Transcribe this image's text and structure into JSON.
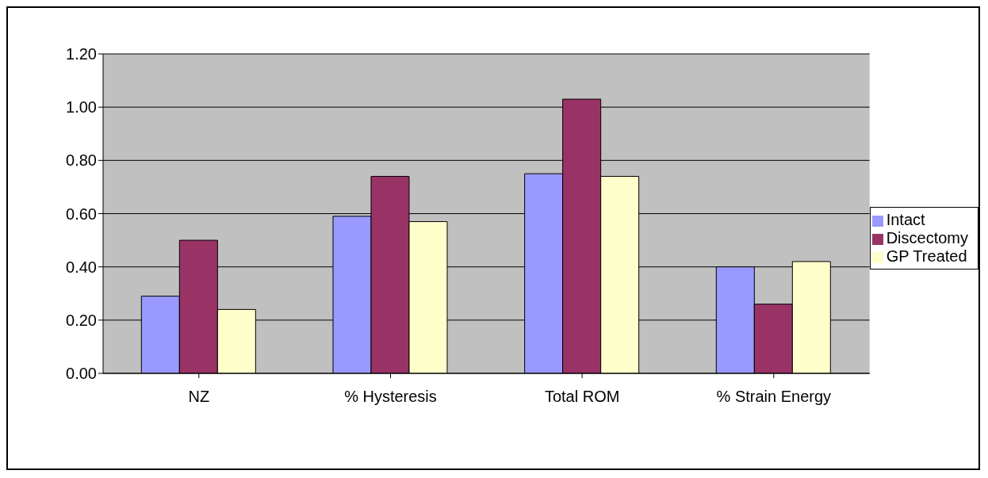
{
  "chart_data": {
    "type": "bar",
    "categories": [
      "NZ",
      "% Hysteresis",
      "Total ROM",
      "% Strain Energy"
    ],
    "series": [
      {
        "name": "Intact",
        "color": "#9999ff",
        "values": [
          0.29,
          0.59,
          0.75,
          0.4
        ]
      },
      {
        "name": "Discectomy",
        "color": "#993366",
        "values": [
          0.5,
          0.74,
          1.03,
          0.26
        ]
      },
      {
        "name": "GP Treated",
        "color": "#ffffcc",
        "values": [
          0.24,
          0.57,
          0.74,
          0.42
        ]
      }
    ],
    "ylim": [
      0,
      1.2
    ],
    "yticks": [
      {
        "value": 0,
        "label": "0.00"
      },
      {
        "value": 0.2,
        "label": "0.20"
      },
      {
        "value": 0.4,
        "label": "0.40"
      },
      {
        "value": 0.6,
        "label": "0.60"
      },
      {
        "value": 0.8,
        "label": "0.80"
      },
      {
        "value": 1,
        "label": "1.00"
      },
      {
        "value": 1.2,
        "label": "1.20"
      }
    ],
    "grid": "y",
    "legend": "right"
  }
}
